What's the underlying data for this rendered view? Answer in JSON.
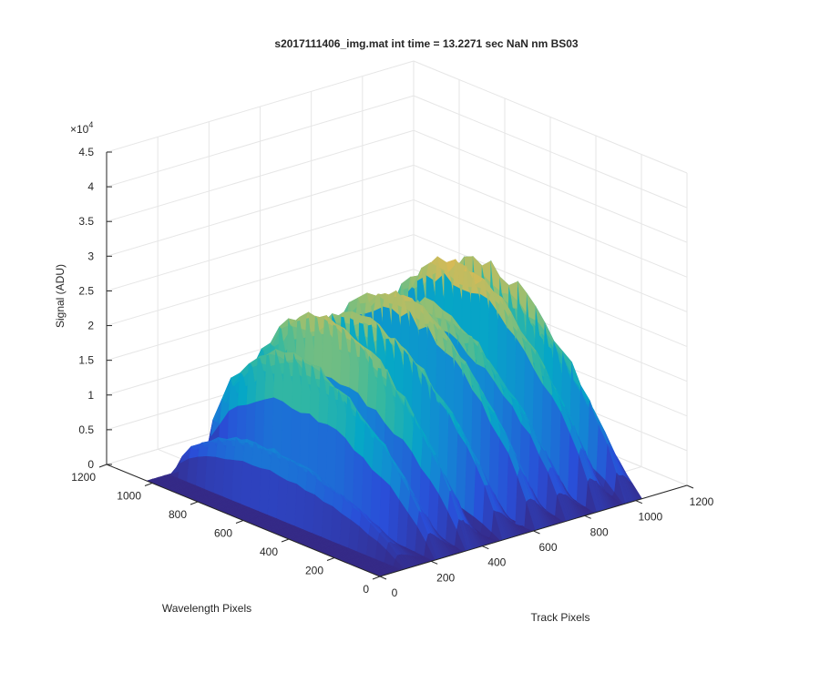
{
  "figure": {
    "background": "#ffffff",
    "colormap": "parula",
    "colormap_stops": [
      "#352a87",
      "#2a4ed8",
      "#1485d4",
      "#06a7c6",
      "#38b99e",
      "#92bf73",
      "#d9ba56",
      "#fcce2e",
      "#f9fb0e"
    ]
  },
  "chart_data": {
    "type": "surface",
    "title": "s2017111406_img.mat int time = 13.2271 sec  NaN nm BS03",
    "xlabel": "Track Pixels",
    "ylabel": "Wavelength Pixels",
    "zlabel": "Signal (ADU)",
    "z_exponent_label": "×10",
    "z_exponent_power": "4",
    "xlim": [
      0,
      1200
    ],
    "ylim": [
      0,
      1200
    ],
    "zlim": [
      0,
      45000
    ],
    "x_ticks": [
      "0",
      "200",
      "400",
      "600",
      "800",
      "1000",
      "1200"
    ],
    "y_ticks": [
      "0",
      "200",
      "400",
      "600",
      "800",
      "1000",
      "1200"
    ],
    "z_ticks": [
      "0",
      "0.5",
      "1",
      "1.5",
      "2",
      "2.5",
      "3",
      "3.5",
      "4",
      "4.5"
    ],
    "grid": true,
    "view": "3d",
    "data_extent": {
      "x": [
        0,
        1024
      ],
      "y": [
        0,
        1024
      ]
    },
    "fiber_tracks": [
      {
        "center_track": 100,
        "peak_signal": 12000
      },
      {
        "center_track": 220,
        "peak_signal": 27000
      },
      {
        "center_track": 340,
        "peak_signal": 33000
      },
      {
        "center_track": 480,
        "peak_signal": 31000
      },
      {
        "center_track": 610,
        "peak_signal": 34000
      },
      {
        "center_track": 730,
        "peak_signal": 30000
      },
      {
        "center_track": 850,
        "peak_signal": 36000
      },
      {
        "center_track": 960,
        "peak_signal": 31000
      }
    ]
  }
}
